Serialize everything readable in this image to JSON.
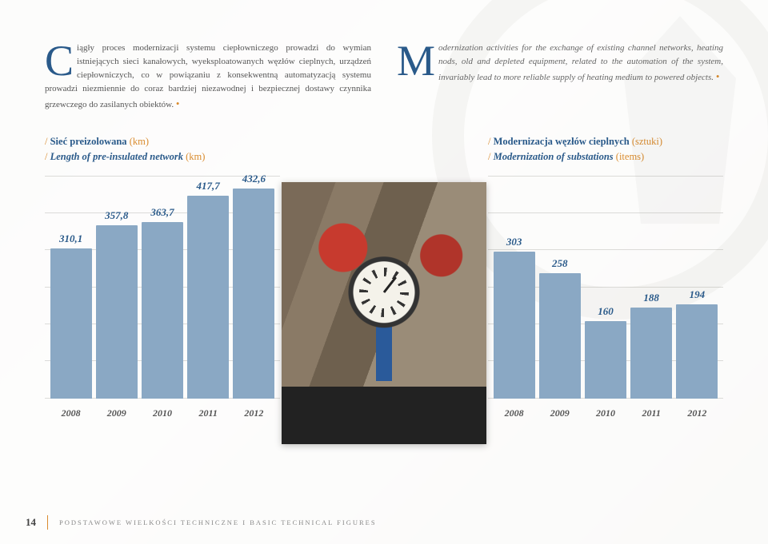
{
  "leftParagraph": {
    "dropcap": "C",
    "text": "iągły proces modernizacji systemu ciepłowniczego prowadzi do wymian istniejących sieci kanałowych, wyeksploatowanych węzłów cieplnych, urządzeń ciepłowniczych, co w powiązaniu z konsekwentną automatyzacją systemu prowadzi niezmiennie do coraz bardziej niezawodnej i bezpiecznej dostawy czynnika grzewczego do zasilanych obiektów."
  },
  "rightParagraph": {
    "dropcap": "M",
    "text": "odernization activities for the exchange of existing channel networks, heating nods, old and depleted equipment, related to the automation of the system, invariably lead to more reliable supply of heating medium to powered objects."
  },
  "chartLeft": {
    "title_pl": "Sieć preizolowana",
    "title_en": "Length of pre-insulated network",
    "unit": "(km)",
    "ymax": 460,
    "gridline_count": 7,
    "bar_color": "#8aa8c4",
    "value_color": "#2a5a8a",
    "label_color": "#555",
    "series": [
      {
        "year": "2008",
        "value": 310.1,
        "label": "310,1"
      },
      {
        "year": "2009",
        "value": 357.8,
        "label": "357,8"
      },
      {
        "year": "2010",
        "value": 363.7,
        "label": "363,7"
      },
      {
        "year": "2011",
        "value": 417.7,
        "label": "417,7"
      },
      {
        "year": "2012",
        "value": 432.6,
        "label": "432,6"
      }
    ]
  },
  "chartRight": {
    "title_pl": "Modernizacja węzłów cieplnych",
    "title_en": "Modernization of substations",
    "unit_pl": "(sztuki)",
    "unit_en": "(items)",
    "ymax": 460,
    "gridline_count": 7,
    "bar_color": "#8aa8c4",
    "value_color": "#2a5a8a",
    "label_color": "#555",
    "series": [
      {
        "year": "2008",
        "value": 303,
        "label": "303"
      },
      {
        "year": "2009",
        "value": 258,
        "label": "258"
      },
      {
        "year": "2010",
        "value": 160,
        "label": "160"
      },
      {
        "year": "2011",
        "value": 188,
        "label": "188"
      },
      {
        "year": "2012",
        "value": 194,
        "label": "194"
      }
    ]
  },
  "footer": {
    "page": "14",
    "text": "PODSTAWOWE WIELKOŚCI TECHNICZNE I BASIC TECHNICAL FIGURES"
  }
}
